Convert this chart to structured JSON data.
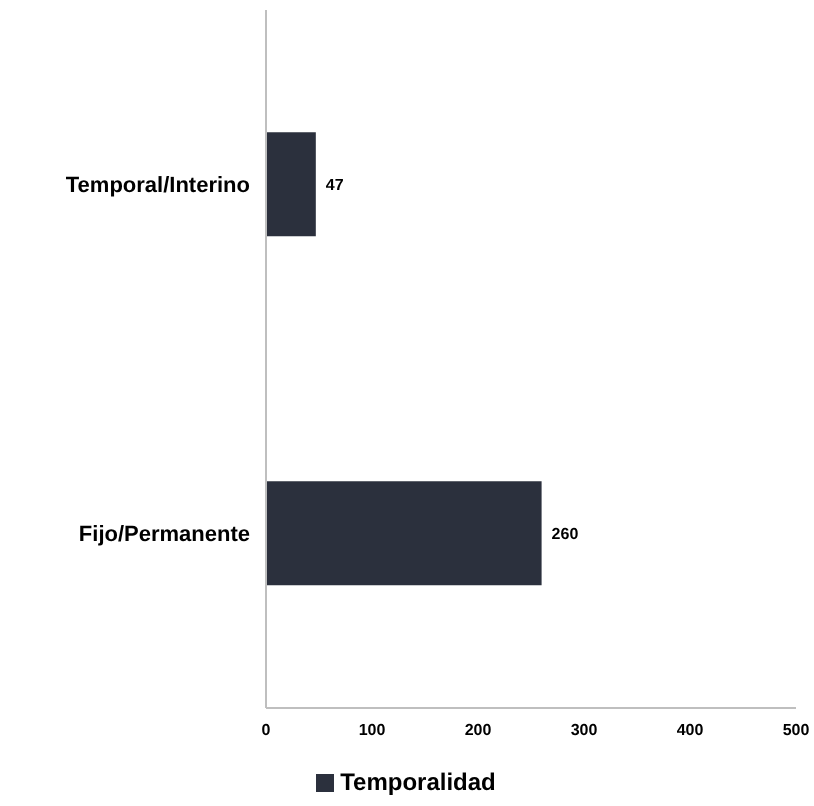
{
  "chart_data": {
    "type": "bar",
    "orientation": "horizontal",
    "categories": [
      "Temporal/Interino",
      "Fijo/Permanente"
    ],
    "series": [
      {
        "name": "Temporalidad",
        "color": "#2b303d",
        "values": [
          47,
          260
        ]
      }
    ],
    "xlim": [
      0,
      500
    ],
    "xticks": [
      0,
      100,
      200,
      300,
      400,
      500
    ],
    "data_labels": true,
    "legend": "bottom",
    "grid": false
  }
}
